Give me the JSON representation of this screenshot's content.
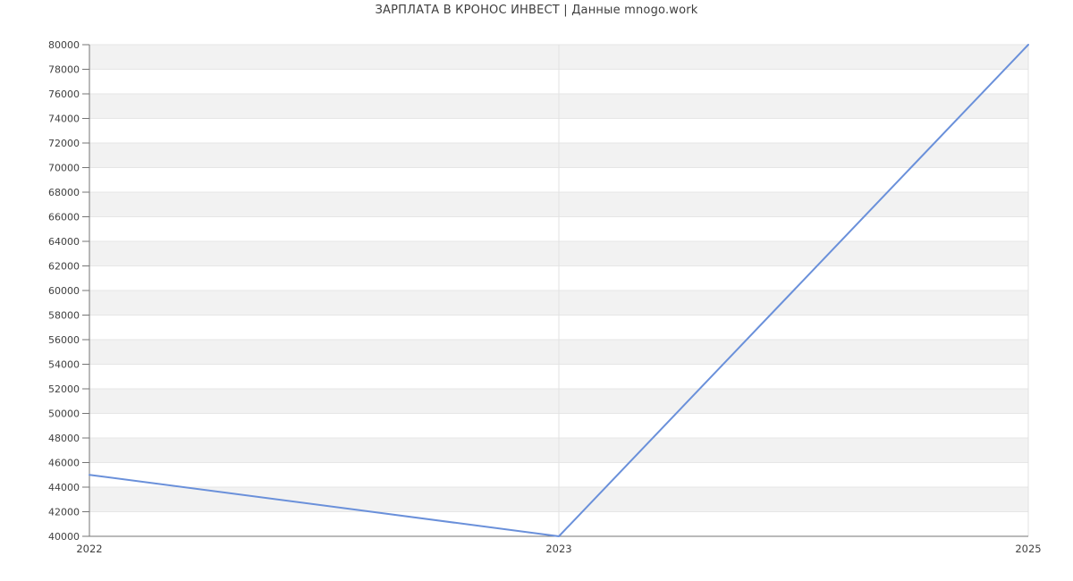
{
  "page": {
    "title": "ЗАРПЛАТА В КРОНОС ИНВЕСТ | Данные mnogo.work"
  },
  "colors": {
    "background": "#ffffff",
    "band": "#f2f2f2",
    "hgrid": "#e6e6e6",
    "vgrid": "#e2e2e2",
    "axis": "#757575",
    "tick_text": "#3f3f3f",
    "title_text": "#3d3d3d",
    "line": "#6a90da"
  },
  "chart_data": {
    "type": "line",
    "title": "ЗАРПЛАТА В КРОНОС ИНВЕСТ | Данные mnogo.work",
    "categories": [
      "2022",
      "2023",
      "2025"
    ],
    "values": [
      45000,
      40000,
      80000
    ],
    "xlabel": "",
    "ylabel": "",
    "ylim": [
      40000,
      80000
    ],
    "ytick_step": 2000,
    "yticks": [
      40000,
      42000,
      44000,
      46000,
      48000,
      50000,
      52000,
      54000,
      56000,
      58000,
      60000,
      62000,
      64000,
      66000,
      68000,
      70000,
      72000,
      74000,
      76000,
      78000,
      80000
    ],
    "grid": true,
    "legend": "none",
    "band_pattern": "alternating-horizontal"
  }
}
